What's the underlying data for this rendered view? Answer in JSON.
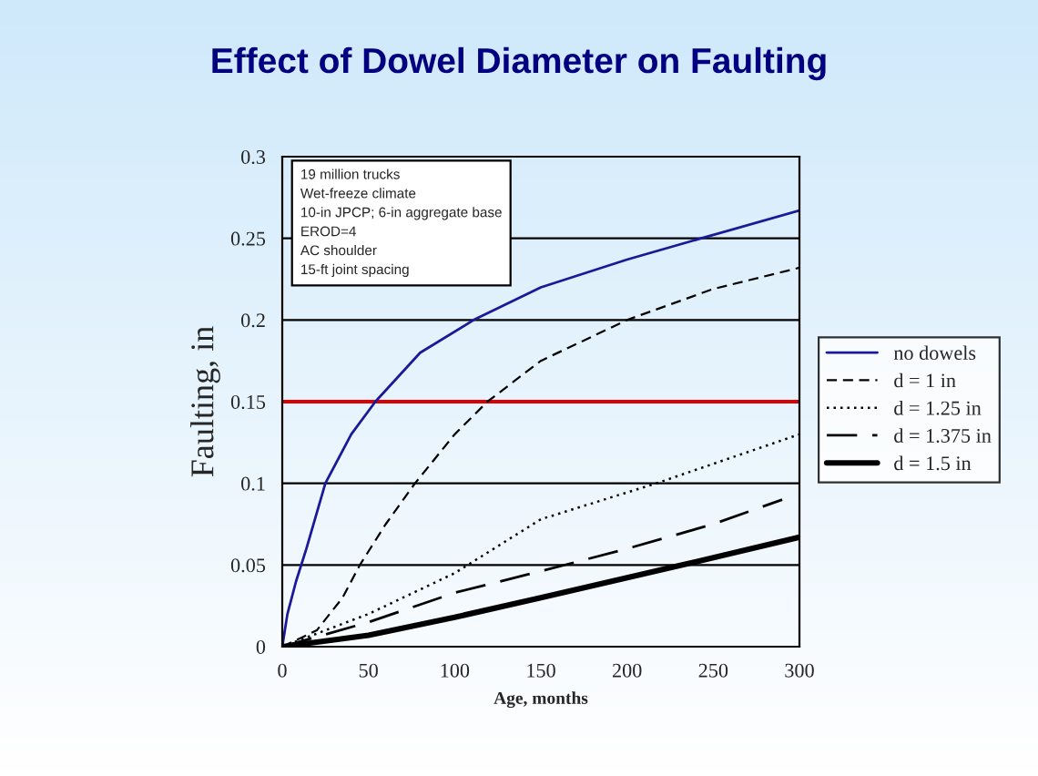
{
  "chart_data": {
    "type": "line",
    "title": "Effect of Dowel Diameter on Faulting",
    "xlabel": "Age, months",
    "ylabel": "Faulting, in",
    "series": [
      {
        "name": "no dowels",
        "color": "#1a1a99",
        "line_style": "solid",
        "x": [
          0,
          3,
          8,
          14,
          25,
          40,
          54,
          80,
          111,
          150,
          200,
          243,
          300
        ],
        "values": [
          0,
          0.02,
          0.04,
          0.06,
          0.1,
          0.13,
          0.15,
          0.18,
          0.2,
          0.22,
          0.237,
          0.25,
          0.267
        ]
      },
      {
        "name": "d = 1 in",
        "color": "#000000",
        "line_style": "dashed",
        "x": [
          0,
          20,
          35,
          45,
          60,
          77,
          100,
          119,
          150,
          200,
          250,
          300
        ],
        "values": [
          0,
          0.01,
          0.03,
          0.05,
          0.075,
          0.1,
          0.13,
          0.15,
          0.175,
          0.2,
          0.219,
          0.232
        ]
      },
      {
        "name": "d = 1.25 in",
        "color": "#000000",
        "line_style": "dotted",
        "x": [
          0,
          50,
          100,
          150,
          217,
          300
        ],
        "values": [
          0,
          0.02,
          0.045,
          0.078,
          0.1,
          0.13
        ]
      },
      {
        "name": "d = 1.375 in",
        "color": "#000000",
        "line_style": "dashed",
        "x": [
          0,
          50,
          100,
          153,
          200,
          250,
          290
        ],
        "values": [
          0,
          0.015,
          0.033,
          0.047,
          0.06,
          0.075,
          0.09
        ]
      },
      {
        "name": "d = 1.5 in",
        "color": "#000000",
        "line_style": "solid",
        "x": [
          0,
          50,
          100,
          150,
          232,
          300
        ],
        "values": [
          0,
          0.007,
          0.018,
          0.03,
          0.05,
          0.067
        ]
      }
    ],
    "xlim": [
      0,
      300
    ],
    "xticks": [
      0,
      50,
      100,
      150,
      200,
      250,
      300
    ],
    "ylim": [
      0,
      0.3
    ],
    "yticks": [
      0,
      0.05,
      0.1,
      0.15,
      0.2,
      0.25,
      0.3
    ],
    "grid": "y",
    "legend": "right",
    "ref_lines": [
      {
        "axis": "y",
        "value": 0.15,
        "color": "#dd0000"
      }
    ],
    "annotations": [
      "19 million trucks\nWet-freeze climate\n10-in JPCP; 6-in aggregate base\nEROD=4\nAC shoulder\n15-ft joint spacing"
    ]
  }
}
